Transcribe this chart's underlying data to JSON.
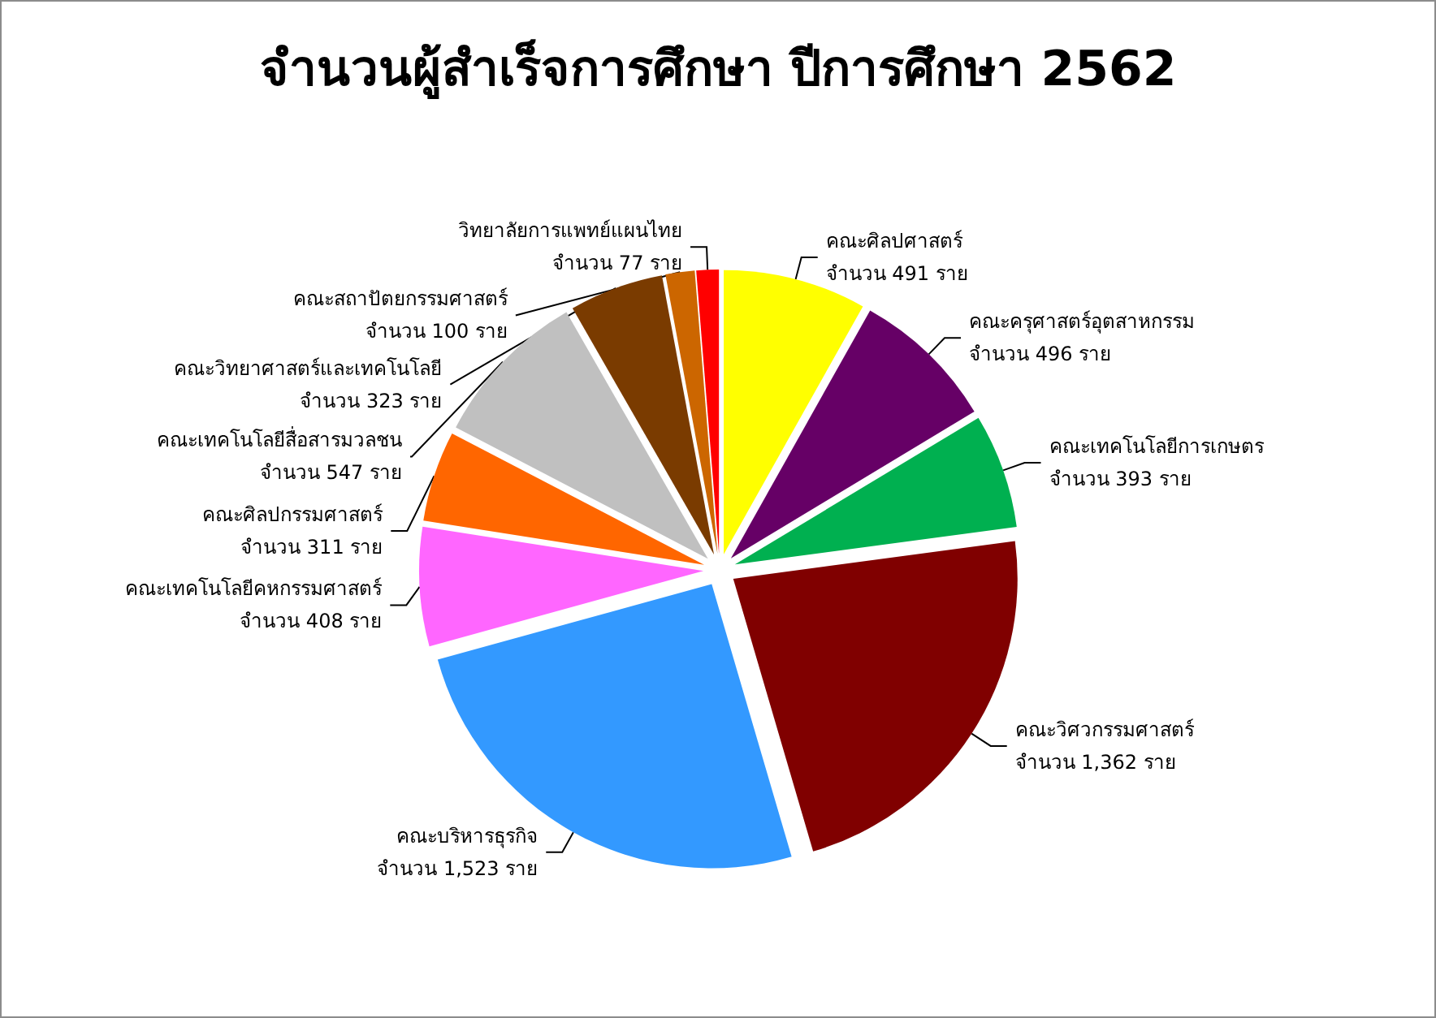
{
  "chart_data": {
    "type": "pie",
    "title": "จำนวนผู้สำเร็จการศึกษา ปีการศึกษา 2562",
    "categories": [
      "คณะศิลปศาสตร์",
      "คณะครุศาสตร์อุตสาหกรรม",
      "คณะเทคโนโลยีการเกษตร",
      "คณะวิศวกรรมศาสตร์",
      "คณะบริหารธุรกิจ",
      "คณะเทคโนโลยีคหกรรมศาสตร์",
      "คณะศิลปกรรมศาสตร์",
      "คณะเทคโนโลยีสื่อสารมวลชน",
      "คณะวิทยาศาสตร์และเทคโนโลยี",
      "คณะสถาปัตยกรรมศาสตร์",
      "วิทยาลัยการแพทย์แผนไทย"
    ],
    "values": [
      491,
      496,
      393,
      1362,
      1523,
      408,
      311,
      547,
      323,
      100,
      77
    ],
    "value_labels": [
      "จำนวน 491 ราย",
      "จำนวน 496 ราย",
      "จำนวน 393 ราย",
      "จำนวน 1,362 ราย",
      "จำนวน 1,523 ราย",
      "จำนวน 408 ราย",
      "จำนวน 311 ราย",
      "จำนวน 547 ราย",
      "จำนวน 323 ราย",
      "จำนวน 100 ราย",
      "จำนวน 77 ราย"
    ],
    "colors": [
      "#ffff00",
      "#660066",
      "#00b050",
      "#800000",
      "#3399ff",
      "#ff66ff",
      "#ff6600",
      "#c0c0c0",
      "#7a3b00",
      "#cc6600",
      "#ff0000"
    ]
  }
}
